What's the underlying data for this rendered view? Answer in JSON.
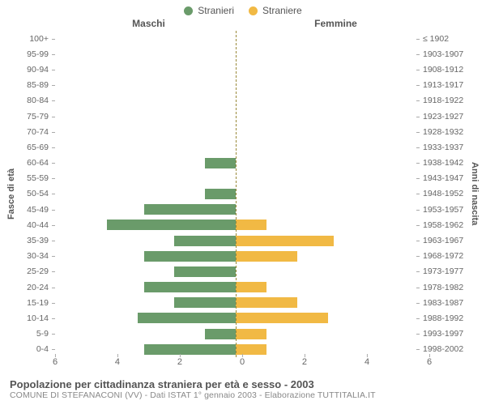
{
  "legend": {
    "male": {
      "label": "Stranieri",
      "color": "#6a9b6a"
    },
    "female": {
      "label": "Straniere",
      "color": "#f1b944"
    }
  },
  "headers": {
    "left": "Maschi",
    "right": "Femmine"
  },
  "axis_labels": {
    "left": "Fasce di età",
    "right": "Anni di nascita"
  },
  "x": {
    "max": 6,
    "ticks": [
      6,
      4,
      2,
      0,
      2,
      4,
      6
    ]
  },
  "rows": [
    {
      "age": "100+",
      "birth": "≤ 1902",
      "m": 0,
      "f": 0
    },
    {
      "age": "95-99",
      "birth": "1903-1907",
      "m": 0,
      "f": 0
    },
    {
      "age": "90-94",
      "birth": "1908-1912",
      "m": 0,
      "f": 0
    },
    {
      "age": "85-89",
      "birth": "1913-1917",
      "m": 0,
      "f": 0
    },
    {
      "age": "80-84",
      "birth": "1918-1922",
      "m": 0,
      "f": 0
    },
    {
      "age": "75-79",
      "birth": "1923-1927",
      "m": 0,
      "f": 0
    },
    {
      "age": "70-74",
      "birth": "1928-1932",
      "m": 0,
      "f": 0
    },
    {
      "age": "65-69",
      "birth": "1933-1937",
      "m": 0,
      "f": 0
    },
    {
      "age": "60-64",
      "birth": "1938-1942",
      "m": 1,
      "f": 0
    },
    {
      "age": "55-59",
      "birth": "1943-1947",
      "m": 0,
      "f": 0
    },
    {
      "age": "50-54",
      "birth": "1948-1952",
      "m": 1,
      "f": 0
    },
    {
      "age": "45-49",
      "birth": "1953-1957",
      "m": 3,
      "f": 0
    },
    {
      "age": "40-44",
      "birth": "1958-1962",
      "m": 4.2,
      "f": 1
    },
    {
      "age": "35-39",
      "birth": "1963-1967",
      "m": 2,
      "f": 3.2
    },
    {
      "age": "30-34",
      "birth": "1968-1972",
      "m": 3,
      "f": 2
    },
    {
      "age": "25-29",
      "birth": "1973-1977",
      "m": 2,
      "f": 0
    },
    {
      "age": "20-24",
      "birth": "1978-1982",
      "m": 3,
      "f": 1
    },
    {
      "age": "15-19",
      "birth": "1983-1987",
      "m": 2,
      "f": 2
    },
    {
      "age": "10-14",
      "birth": "1988-1992",
      "m": 3.2,
      "f": 3
    },
    {
      "age": "5-9",
      "birth": "1993-1997",
      "m": 1,
      "f": 1
    },
    {
      "age": "0-4",
      "birth": "1998-2002",
      "m": 3,
      "f": 1
    }
  ],
  "title": "Popolazione per cittadinanza straniera per età e sesso - 2003",
  "subtitle": "COMUNE DI STEFANACONI (VV) - Dati ISTAT 1° gennaio 2003 - Elaborazione TUTTITALIA.IT",
  "colors": {
    "bg": "#ffffff",
    "text": "#555555",
    "muted": "#888888"
  }
}
